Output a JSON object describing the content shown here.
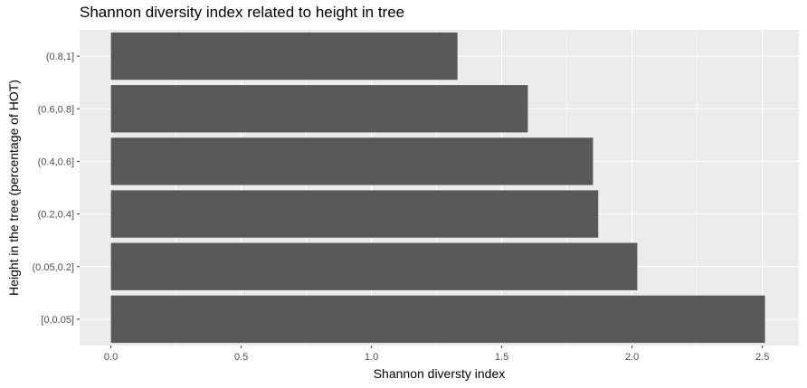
{
  "chart_data": {
    "type": "bar",
    "orientation": "horizontal",
    "title": "Shannon diversity index related to height in tree",
    "xlabel": "Shannon diversty index",
    "ylabel": "Height in the tree (percentage of HOT)",
    "categories": [
      "[0,0.05]",
      "(0.05,0.2]",
      "(0.2,0.4]",
      "(0.4,0.6]",
      "(0.6,0.8]",
      "(0.8,1]"
    ],
    "values": [
      2.51,
      2.02,
      1.87,
      1.85,
      1.6,
      1.33
    ],
    "xlim": [
      -0.12,
      2.64
    ],
    "xticks": [
      0.0,
      0.5,
      1.0,
      1.5,
      2.0,
      2.5
    ],
    "xtick_labels": [
      "0.0",
      "0.5",
      "1.0",
      "1.5",
      "2.0",
      "2.5"
    ],
    "grid": true,
    "legend": "none",
    "colors": {
      "bar": "#595959",
      "panel": "#ebebeb",
      "grid": "#ffffff"
    }
  }
}
